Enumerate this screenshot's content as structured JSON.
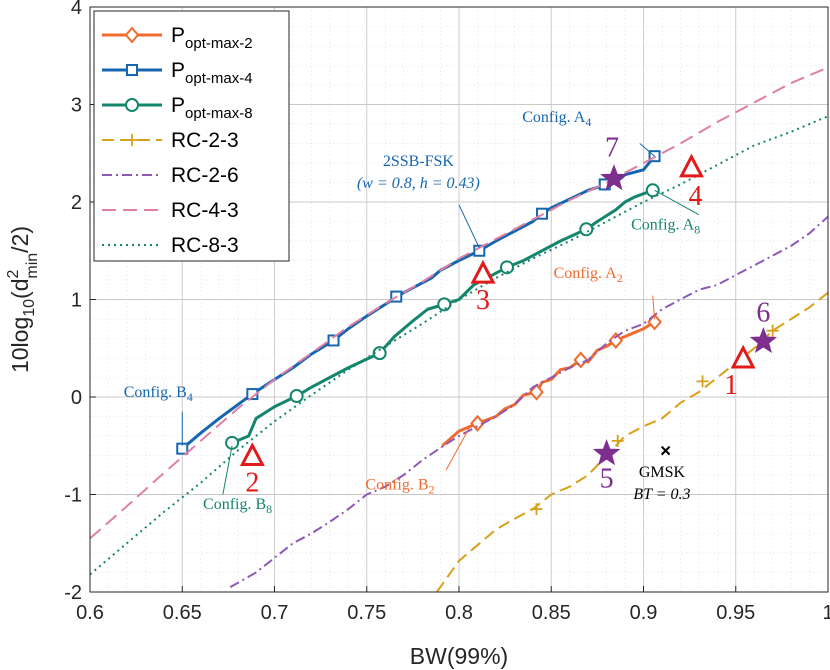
{
  "chart_data": {
    "type": "line",
    "xlabel": "BW(99%)",
    "ylabel": "10log10(d²min/2)",
    "xlim": [
      0.6,
      1.0
    ],
    "ylim": [
      -2,
      4
    ],
    "xticks": [
      "0.6",
      "0.65",
      "0.7",
      "0.75",
      "0.8",
      "0.85",
      "0.9",
      "0.95",
      "1"
    ],
    "yticks": [
      "-2",
      "-1",
      "0",
      "1",
      "2",
      "3",
      "4"
    ],
    "grid": "minor dotted",
    "legend_position": "top-left",
    "series": [
      {
        "name": "Popt-max-2",
        "legend_main": "P",
        "legend_sub": "opt-max-2",
        "color": "#f26b2e",
        "style": "solid",
        "marker": "diamond",
        "x": [
          0.791,
          0.8,
          0.81,
          0.82,
          0.825,
          0.83,
          0.835,
          0.842,
          0.845,
          0.85,
          0.855,
          0.86,
          0.866,
          0.87,
          0.875,
          0.88,
          0.885,
          0.89,
          0.895,
          0.9,
          0.906
        ],
        "y": [
          -0.5,
          -0.35,
          -0.27,
          -0.2,
          -0.12,
          -0.08,
          0.02,
          0.05,
          0.15,
          0.18,
          0.28,
          0.3,
          0.38,
          0.36,
          0.48,
          0.52,
          0.58,
          0.62,
          0.66,
          0.7,
          0.77
        ],
        "markers": [
          [
            0.81,
            -0.27
          ],
          [
            0.842,
            0.05
          ],
          [
            0.866,
            0.38
          ],
          [
            0.885,
            0.58
          ],
          [
            0.906,
            0.77
          ]
        ]
      },
      {
        "name": "Popt-max-4",
        "legend_main": "P",
        "legend_sub": "opt-max-4",
        "color": "#1566b0",
        "style": "solid",
        "marker": "square",
        "x": [
          0.65,
          0.66,
          0.67,
          0.68,
          0.688,
          0.7,
          0.71,
          0.72,
          0.732,
          0.74,
          0.75,
          0.76,
          0.766,
          0.775,
          0.785,
          0.79,
          0.8,
          0.811,
          0.82,
          0.83,
          0.84,
          0.845,
          0.85,
          0.86,
          0.87,
          0.88,
          0.885,
          0.89,
          0.9,
          0.906
        ],
        "y": [
          -0.53,
          -0.37,
          -0.22,
          -0.08,
          0.03,
          0.18,
          0.3,
          0.44,
          0.58,
          0.7,
          0.83,
          0.95,
          1.03,
          1.12,
          1.22,
          1.3,
          1.4,
          1.5,
          1.6,
          1.7,
          1.8,
          1.88,
          1.94,
          2.03,
          2.12,
          2.18,
          2.2,
          2.28,
          2.33,
          2.47
        ],
        "markers": [
          [
            0.65,
            -0.53
          ],
          [
            0.688,
            0.03
          ],
          [
            0.732,
            0.58
          ],
          [
            0.766,
            1.03
          ],
          [
            0.811,
            1.5
          ],
          [
            0.845,
            1.88
          ],
          [
            0.879,
            2.18
          ],
          [
            0.906,
            2.47
          ]
        ]
      },
      {
        "name": "Popt-max-8",
        "legend_main": "P",
        "legend_sub": "opt-max-8",
        "color": "#14866d",
        "style": "solid",
        "marker": "circle",
        "x": [
          0.677,
          0.686,
          0.69,
          0.7,
          0.712,
          0.72,
          0.73,
          0.74,
          0.757,
          0.765,
          0.775,
          0.783,
          0.792,
          0.8,
          0.808,
          0.815,
          0.826,
          0.835,
          0.845,
          0.855,
          0.869,
          0.875,
          0.885,
          0.89,
          0.895,
          0.905
        ],
        "y": [
          -0.47,
          -0.4,
          -0.22,
          -0.1,
          0.01,
          0.1,
          0.2,
          0.3,
          0.45,
          0.62,
          0.78,
          0.9,
          0.95,
          1.0,
          1.15,
          1.22,
          1.33,
          1.4,
          1.5,
          1.6,
          1.72,
          1.8,
          1.92,
          2.0,
          2.05,
          2.12
        ],
        "markers": [
          [
            0.677,
            -0.47
          ],
          [
            0.712,
            0.01
          ],
          [
            0.757,
            0.45
          ],
          [
            0.792,
            0.95
          ],
          [
            0.826,
            1.33
          ],
          [
            0.869,
            1.72
          ],
          [
            0.905,
            2.12
          ]
        ]
      },
      {
        "name": "RC-2-3",
        "color": "#d8a018",
        "style": "longdash",
        "marker": "plus",
        "x": [
          0.788,
          0.8,
          0.81,
          0.82,
          0.83,
          0.84,
          0.85,
          0.86,
          0.87,
          0.88,
          0.89,
          0.9,
          0.91,
          0.92,
          0.93,
          0.94,
          0.95,
          0.96,
          0.97,
          0.98,
          0.99,
          1.0
        ],
        "y": [
          -2.0,
          -1.68,
          -1.52,
          -1.36,
          -1.25,
          -1.15,
          -1.0,
          -0.92,
          -0.8,
          -0.6,
          -0.4,
          -0.3,
          -0.22,
          -0.06,
          0.05,
          0.2,
          0.35,
          0.5,
          0.68,
          0.8,
          0.92,
          1.07
        ],
        "markers": [
          [
            0.842,
            -1.15
          ],
          [
            0.886,
            -0.45
          ],
          [
            0.932,
            0.16
          ],
          [
            0.97,
            0.68
          ]
        ]
      },
      {
        "name": "RC-2-6",
        "color": "#8e58b8",
        "style": "dashdot",
        "marker": "none",
        "x": [
          0.676,
          0.69,
          0.7,
          0.71,
          0.72,
          0.73,
          0.74,
          0.75,
          0.76,
          0.77,
          0.78,
          0.79,
          0.8,
          0.81,
          0.82,
          0.83,
          0.84,
          0.85,
          0.86,
          0.87,
          0.88,
          0.89,
          0.9,
          0.91,
          0.92,
          0.93,
          0.94,
          0.95,
          0.96,
          0.97,
          0.98,
          0.99,
          1.0
        ],
        "y": [
          -1.95,
          -1.8,
          -1.65,
          -1.5,
          -1.4,
          -1.28,
          -1.15,
          -1.0,
          -0.92,
          -0.8,
          -0.65,
          -0.52,
          -0.4,
          -0.3,
          -0.2,
          -0.08,
          0.1,
          0.2,
          0.3,
          0.38,
          0.55,
          0.68,
          0.75,
          0.9,
          1.0,
          1.1,
          1.15,
          1.25,
          1.35,
          1.45,
          1.55,
          1.68,
          1.85
        ]
      },
      {
        "name": "RC-4-3",
        "color": "#e07fa3",
        "style": "dash",
        "marker": "none",
        "x": [
          0.6,
          0.62,
          0.64,
          0.66,
          0.68,
          0.7,
          0.72,
          0.74,
          0.76,
          0.78,
          0.8,
          0.82,
          0.84,
          0.86,
          0.88,
          0.9,
          0.92,
          0.94,
          0.96,
          0.98,
          1.0
        ],
        "y": [
          -1.45,
          -1.12,
          -0.78,
          -0.45,
          -0.12,
          0.18,
          0.45,
          0.72,
          0.96,
          1.18,
          1.42,
          1.62,
          1.82,
          2.02,
          2.2,
          2.4,
          2.6,
          2.82,
          3.02,
          3.22,
          3.38
        ]
      },
      {
        "name": "RC-8-3",
        "color": "#14866d",
        "style": "dot",
        "marker": "none",
        "x": [
          0.6,
          0.62,
          0.64,
          0.66,
          0.68,
          0.7,
          0.72,
          0.74,
          0.76,
          0.78,
          0.8,
          0.82,
          0.84,
          0.86,
          0.88,
          0.9,
          0.92,
          0.94,
          0.96,
          0.98,
          1.0
        ],
        "y": [
          -1.82,
          -1.5,
          -1.18,
          -0.88,
          -0.55,
          -0.25,
          0.02,
          0.28,
          0.52,
          0.75,
          1.0,
          1.22,
          1.42,
          1.6,
          1.8,
          2.0,
          2.18,
          2.38,
          2.58,
          2.72,
          2.88
        ]
      }
    ],
    "points": [
      {
        "label": "1",
        "shape": "triangle",
        "x": 0.954,
        "y": 0.38,
        "color": "#e21a1a"
      },
      {
        "label": "2",
        "shape": "triangle",
        "x": 0.688,
        "y": -0.62,
        "color": "#e21a1a"
      },
      {
        "label": "3",
        "shape": "triangle",
        "x": 0.813,
        "y": 1.25,
        "color": "#e21a1a"
      },
      {
        "label": "4",
        "shape": "triangle",
        "x": 0.926,
        "y": 2.34,
        "color": "#e21a1a"
      },
      {
        "label": "5",
        "shape": "star",
        "x": 0.88,
        "y": -0.58,
        "color": "#7e2f8e"
      },
      {
        "label": "6",
        "shape": "star",
        "x": 0.965,
        "y": 0.57,
        "color": "#7e2f8e"
      },
      {
        "label": "7",
        "shape": "star",
        "x": 0.884,
        "y": 2.24,
        "color": "#7e2f8e"
      },
      {
        "label": "GMSK",
        "shape": "cross",
        "x": 0.912,
        "y": -0.55,
        "color": "#000000"
      }
    ],
    "annotations": [
      {
        "id": "a4",
        "text": "Config. A",
        "sub": "4",
        "color": "#1566b0",
        "tx": 0.853,
        "ty": 2.82,
        "ax": 0.898,
        "ay": 2.6,
        "px": 0.906,
        "py": 2.47
      },
      {
        "id": "a8",
        "text": "Config. A",
        "sub": "8",
        "color": "#14866d",
        "tx": 0.912,
        "ty": 1.72,
        "ax": 0.93,
        "ay": 1.87,
        "px": 0.906,
        "py": 2.12
      },
      {
        "id": "a2",
        "text": "Config. A",
        "sub": "2",
        "color": "#f26b2e",
        "tx": 0.87,
        "ty": 1.22,
        "ax": 0.905,
        "ay": 1.04,
        "px": 0.906,
        "py": 0.8
      },
      {
        "id": "b4",
        "text": "Config. B",
        "sub": "4",
        "color": "#1566b0",
        "tx": 0.637,
        "ty": 0.0,
        "ax": 0.65,
        "ay": -0.15,
        "px": 0.65,
        "py": -0.5
      },
      {
        "id": "b8",
        "text": "Config. B",
        "sub": "8",
        "color": "#14866d",
        "tx": 0.68,
        "ty": -1.15,
        "ax": 0.672,
        "ay": -1.0,
        "px": 0.677,
        "py": -0.5
      },
      {
        "id": "b2",
        "text": "Config. B",
        "sub": "2",
        "color": "#f26b2e",
        "tx": 0.768,
        "ty": -0.95,
        "ax": 0.793,
        "ay": -0.75,
        "px": 0.806,
        "py": -0.3
      },
      {
        "id": "ssb",
        "text": "2SSB-FSK",
        "line2": "(w = 0.8, h = 0.43)",
        "color": "#1566b0",
        "tx": 0.778,
        "ty": 2.37,
        "ax": 0.8,
        "ay": 1.97,
        "px": 0.811,
        "py": 1.53
      },
      {
        "id": "gmsk",
        "text": "GMSK",
        "line2": "BT = 0.3",
        "color": "#000000",
        "tx": 0.91,
        "ty": -0.82,
        "ax": 0,
        "ay": 0,
        "px": 0,
        "py": 0
      }
    ]
  }
}
